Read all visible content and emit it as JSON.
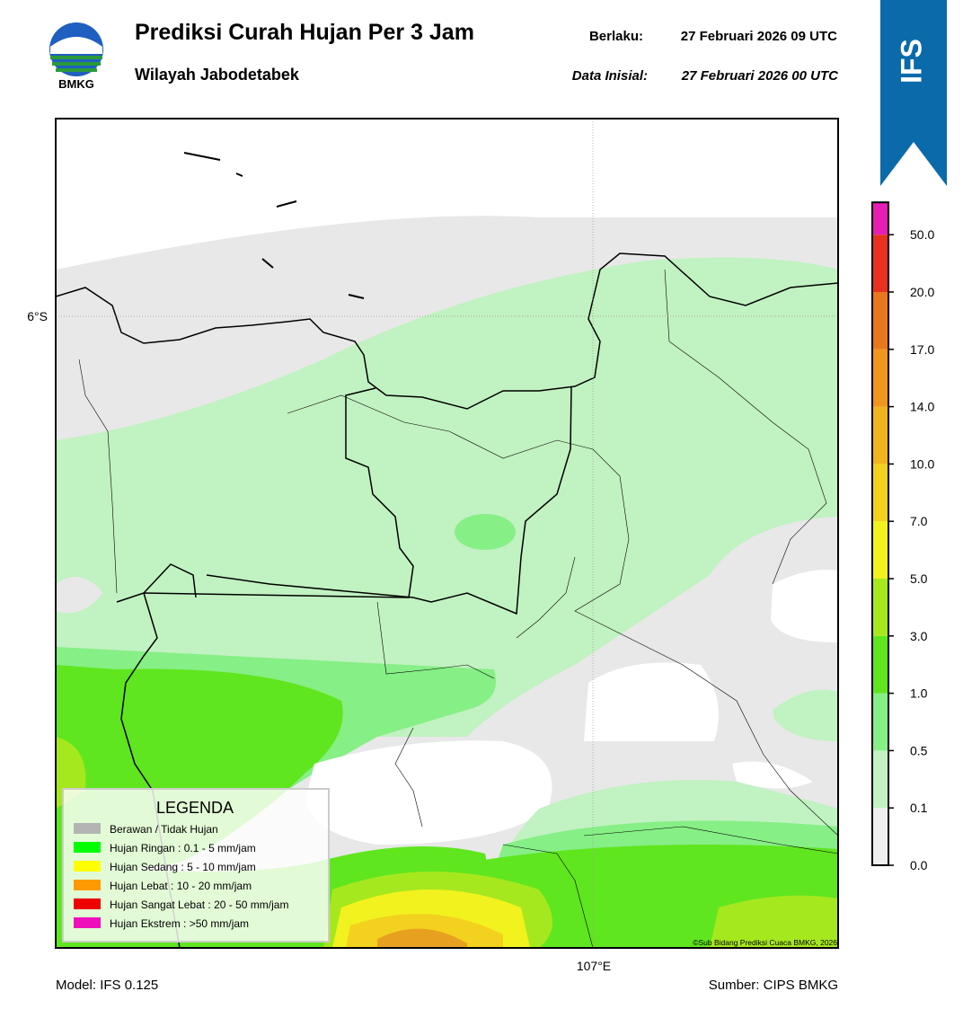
{
  "header": {
    "logo_text": "BMKG",
    "title": "Prediksi Curah Hujan Per 3 Jam",
    "subtitle": "Wilayah Jabodetabek",
    "valid_label": "Berlaku:",
    "valid_time": "27 Februari 2026 09 UTC",
    "init_label": "Data Inisial:",
    "init_time": "27 Februari 2026 00 UTC"
  },
  "badge": "IFS",
  "map": {
    "lat_label": "6°S",
    "lon_label": "107°E",
    "copyright": "©Sub Bidang Prediksi Cuaca BMKG, 2026"
  },
  "legend": {
    "title": "LEGENDA",
    "items": [
      {
        "label": "Berawan / Tidak Hujan",
        "color": "#b4b4b4"
      },
      {
        "label": "Hujan Ringan : 0.1 - 5 mm/jam",
        "color": "#00ff00"
      },
      {
        "label": "Hujan Sedang : 5 - 10 mm/jam",
        "color": "#ffff00"
      },
      {
        "label": "Hujan Lebat : 10 - 20 mm/jam",
        "color": "#ff9900"
      },
      {
        "label": "Hujan Sangat Lebat : 20 - 50 mm/jam",
        "color": "#ee0000"
      },
      {
        "label": "Hujan Ekstrem : >50 mm/jam",
        "color": "#ee11bb"
      }
    ]
  },
  "colorbar": {
    "labels": [
      "0.0",
      "0.1",
      "0.5",
      "1.0",
      "3.0",
      "5.0",
      "7.0",
      "10.0",
      "14.0",
      "17.0",
      "20.0",
      "50.0"
    ],
    "colors": [
      "#efefef",
      "#c2f2c2",
      "#86ef86",
      "#5fe61e",
      "#a6e81e",
      "#f2f21e",
      "#f2d21e",
      "#f0b41e",
      "#f0961e",
      "#e8781e",
      "#e6321e",
      "#e61eb4"
    ]
  },
  "footer": {
    "model": "Model: IFS 0.125",
    "source": "Sumber: CIPS BMKG"
  }
}
